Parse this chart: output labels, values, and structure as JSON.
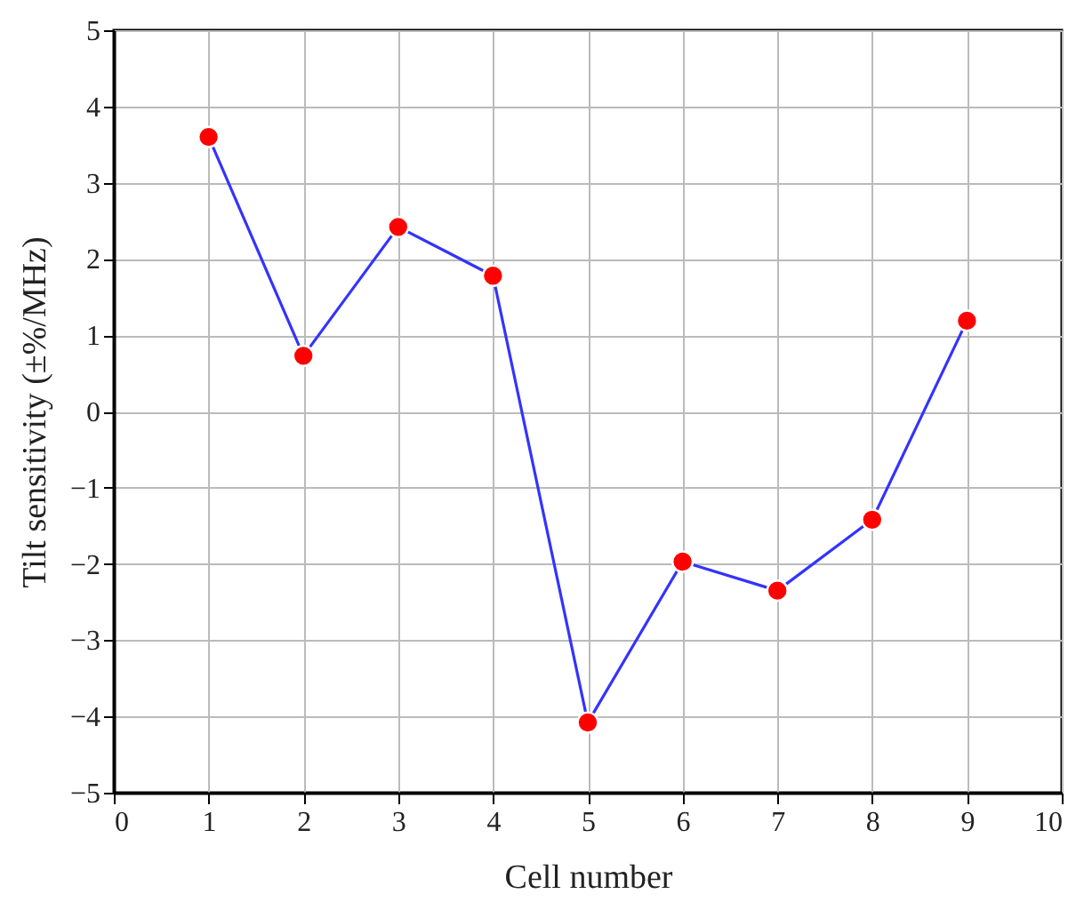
{
  "chart_data": {
    "type": "line",
    "xlabel": "Cell number",
    "ylabel": "Tilt sensitivity (±%/MHz)",
    "x": [
      1,
      2,
      3,
      4,
      5,
      6,
      7,
      8,
      9
    ],
    "series": [
      {
        "color": "#3333ff",
        "colors": [
          "#ff0000",
          "#ff0000",
          "#ff0000",
          "#ff0000",
          "#ff0000",
          "#ff0000",
          "#ff0000",
          "#ff0000",
          "#ff0000"
        ],
        "values": [
          3.6,
          0.73,
          2.42,
          1.78,
          -4.08,
          -1.97,
          -2.35,
          -1.42,
          1.19
        ]
      }
    ],
    "marker": "circle",
    "xlim": [
      0,
      10
    ],
    "xticks": [
      0,
      1,
      2,
      3,
      4,
      5,
      6,
      7,
      8,
      9,
      10
    ],
    "ylim": [
      -5,
      5
    ],
    "yticks": [
      -5,
      -4,
      -3,
      -2,
      -1,
      0,
      1,
      2,
      3,
      4,
      5
    ],
    "grid": true,
    "line_style": "solid"
  }
}
